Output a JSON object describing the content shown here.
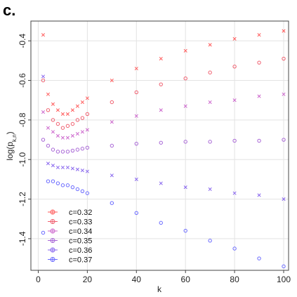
{
  "panel_label": "c.",
  "chart_data": {
    "type": "scatter",
    "xlabel": "k",
    "ylabel_main": "log(p",
    "ylabel_sub": "k,n",
    "ylabel_close": ")",
    "xlim": [
      -3,
      102
    ],
    "ylim": [
      -1.56,
      -0.3
    ],
    "xticks": [
      0,
      20,
      40,
      60,
      80,
      100
    ],
    "yticks": [
      -1.4,
      -1.2,
      -1.0,
      -0.8,
      -0.6,
      -0.4
    ],
    "grid": true,
    "legend_position": "bottom-left",
    "series": [
      {
        "name": "c=0.32",
        "color": "#ff5a5a",
        "marker": "x",
        "x": [
          2,
          4,
          6,
          8,
          10,
          12,
          14,
          16,
          18,
          20,
          30,
          40,
          50,
          60,
          70,
          80,
          90,
          100
        ],
        "y": [
          -0.37,
          -0.67,
          -0.72,
          -0.75,
          -0.77,
          -0.77,
          -0.75,
          -0.73,
          -0.71,
          -0.69,
          -0.6,
          -0.54,
          -0.49,
          -0.45,
          -0.42,
          -0.39,
          -0.37,
          -0.35
        ]
      },
      {
        "name": "c=0.33",
        "color": "#f06070",
        "marker": "o",
        "x": [
          2,
          4,
          6,
          8,
          10,
          12,
          14,
          16,
          18,
          20,
          30,
          40,
          50,
          60,
          70,
          80,
          90,
          100
        ],
        "y": [
          -0.6,
          -0.75,
          -0.8,
          -0.82,
          -0.84,
          -0.83,
          -0.82,
          -0.8,
          -0.79,
          -0.77,
          -0.71,
          -0.66,
          -0.62,
          -0.59,
          -0.56,
          -0.53,
          -0.51,
          -0.49
        ]
      },
      {
        "name": "c=0.34",
        "color": "#cc66cc",
        "marker": "x",
        "x": [
          2,
          4,
          6,
          8,
          10,
          12,
          14,
          16,
          18,
          20,
          30,
          40,
          50,
          60,
          70,
          80,
          90,
          100
        ],
        "y": [
          -0.76,
          -0.84,
          -0.86,
          -0.88,
          -0.89,
          -0.89,
          -0.88,
          -0.87,
          -0.86,
          -0.85,
          -0.81,
          -0.78,
          -0.75,
          -0.73,
          -0.71,
          -0.7,
          -0.68,
          -0.67
        ]
      },
      {
        "name": "c=0.35",
        "color": "#a866d6",
        "marker": "o",
        "x": [
          2,
          4,
          6,
          8,
          10,
          12,
          14,
          16,
          18,
          20,
          30,
          40,
          50,
          60,
          70,
          80,
          90,
          100
        ],
        "y": [
          -0.9,
          -0.93,
          -0.95,
          -0.96,
          -0.96,
          -0.96,
          -0.955,
          -0.95,
          -0.945,
          -0.94,
          -0.93,
          -0.92,
          -0.915,
          -0.91,
          -0.91,
          -0.905,
          -0.905,
          -0.9
        ]
      },
      {
        "name": "c=0.36",
        "color": "#8866ee",
        "marker": "x",
        "x": [
          2,
          4,
          6,
          8,
          10,
          12,
          14,
          16,
          18,
          20,
          30,
          40,
          50,
          60,
          70,
          80,
          90,
          100
        ],
        "y": [
          -0.58,
          -1.02,
          -1.03,
          -1.04,
          -1.04,
          -1.04,
          -1.045,
          -1.05,
          -1.055,
          -1.06,
          -1.08,
          -1.1,
          -1.12,
          -1.14,
          -1.15,
          -1.17,
          -1.18,
          -1.2
        ]
      },
      {
        "name": "c=0.37",
        "color": "#6a6aff",
        "marker": "o",
        "x": [
          2,
          4,
          6,
          8,
          10,
          12,
          14,
          16,
          18,
          20,
          30,
          40,
          50,
          60,
          70,
          80,
          90,
          100
        ],
        "y": [
          -1.37,
          -1.11,
          -1.11,
          -1.12,
          -1.13,
          -1.13,
          -1.14,
          -1.15,
          -1.16,
          -1.17,
          -1.22,
          -1.27,
          -1.32,
          -1.36,
          -1.41,
          -1.45,
          -1.5,
          -1.54
        ]
      }
    ]
  }
}
